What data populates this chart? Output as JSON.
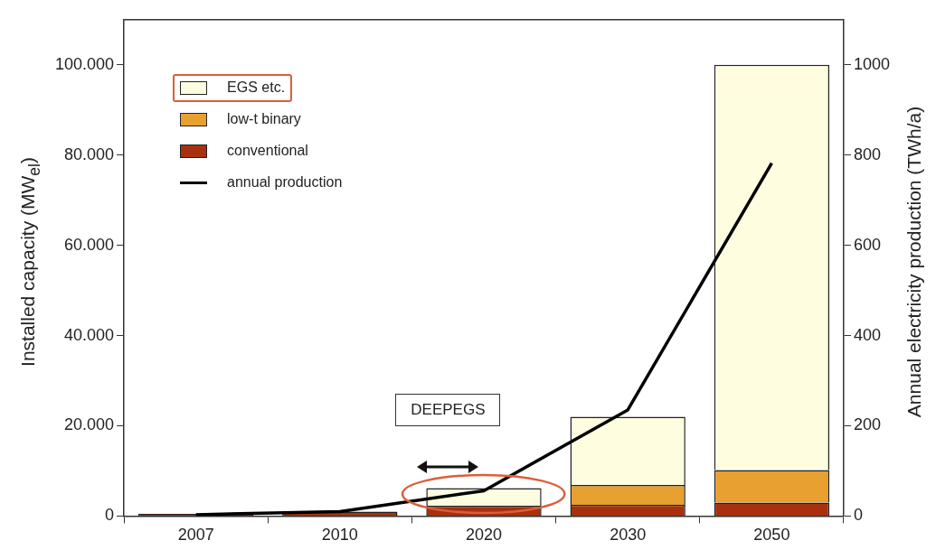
{
  "chart_data": {
    "type": "bar",
    "stacked": true,
    "categories": [
      "2007",
      "2010",
      "2020",
      "2030",
      "2050"
    ],
    "ylabel": "Installed capacity (MW$_{el}$)",
    "y2label": "Annual electricity production (TWh/a)",
    "ylim": [
      0,
      110000
    ],
    "yticks": [
      {
        "value": 0,
        "label": "0"
      },
      {
        "value": 20000,
        "label": "20.000"
      },
      {
        "value": 40000,
        "label": "40.000"
      },
      {
        "value": 60000,
        "label": "60.000"
      },
      {
        "value": 80000,
        "label": "80.000"
      },
      {
        "value": 100000,
        "label": "100.000"
      }
    ],
    "y2lim": [
      0,
      1100
    ],
    "y2ticks": [
      0,
      200,
      400,
      600,
      800,
      1000
    ],
    "series": [
      {
        "name": "conventional",
        "color": "#a8300f",
        "values": [
          500,
          1000,
          2300,
          2500,
          3000
        ]
      },
      {
        "name": "low-t binary",
        "color": "#e8a030",
        "values": [
          0,
          0,
          0,
          4400,
          7200
        ]
      },
      {
        "name": "EGS etc.",
        "color": "#fffde0",
        "values": [
          0,
          0,
          3900,
          15100,
          89800
        ]
      },
      {
        "name": "annual production",
        "type": "line",
        "axis": "y2",
        "color": "#000000",
        "values": [
          3,
          10,
          56,
          235,
          782
        ]
      }
    ],
    "legend": "top left",
    "grid": false,
    "marker": "none",
    "annotations": [
      "DEEPEGS"
    ]
  }
}
